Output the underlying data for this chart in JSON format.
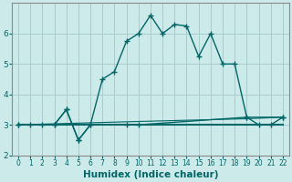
{
  "xlabel": "Humidex (Indice chaleur)",
  "background_color": "#cceaea",
  "grid_color": "#aacccc",
  "line_color": "#006666",
  "series": [
    {
      "x": [
        0,
        1,
        2,
        3,
        4,
        5,
        6,
        7,
        8,
        9,
        10,
        11,
        12,
        13,
        14,
        15,
        16,
        17,
        18,
        19,
        20,
        21,
        22
      ],
      "y": [
        3.0,
        3.0,
        3.0,
        3.0,
        3.5,
        2.5,
        3.0,
        4.5,
        4.75,
        5.75,
        6.0,
        6.6,
        6.0,
        6.3,
        6.25,
        5.25,
        6.0,
        5.0,
        5.0,
        3.25,
        3.0,
        3.0,
        3.25
      ],
      "marker": true
    },
    {
      "x": [
        0,
        3,
        4,
        5,
        6,
        7,
        9,
        10,
        11,
        12,
        13,
        14,
        15,
        16,
        17,
        18,
        19,
        20,
        21,
        22
      ],
      "y": [
        3.0,
        3.0,
        3.0,
        3.0,
        3.0,
        3.0,
        3.0,
        3.0,
        3.0,
        3.0,
        3.0,
        3.0,
        3.0,
        3.0,
        3.0,
        3.0,
        3.0,
        3.0,
        3.0,
        3.0
      ],
      "marker": false
    },
    {
      "x": [
        0,
        3,
        4,
        5,
        6,
        9,
        10,
        19,
        22
      ],
      "y": [
        3.0,
        3.0,
        3.5,
        2.5,
        3.0,
        3.0,
        3.0,
        3.25,
        3.25
      ],
      "marker": true
    },
    {
      "x": [
        0,
        9,
        19,
        22
      ],
      "y": [
        3.0,
        3.1,
        3.2,
        3.25
      ],
      "marker": false
    }
  ],
  "xlim": [
    -0.5,
    22.5
  ],
  "ylim": [
    2.0,
    7.0
  ],
  "yticks": [
    2,
    3,
    4,
    5,
    6
  ],
  "xticks": [
    0,
    1,
    2,
    3,
    4,
    5,
    6,
    7,
    8,
    9,
    10,
    11,
    12,
    13,
    14,
    15,
    16,
    17,
    18,
    19,
    20,
    21,
    22
  ],
  "markersize": 4,
  "linewidth": 1.0
}
